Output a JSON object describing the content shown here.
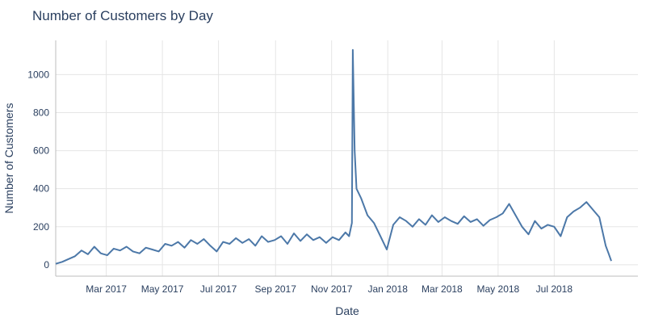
{
  "chart_data": {
    "type": "line",
    "title": "Number of Customers by Day",
    "xlabel": "Date",
    "ylabel": "Number of Customers",
    "xlim": [
      "2017-01-05",
      "2018-09-30"
    ],
    "ylim": [
      -60,
      1180
    ],
    "x_ticks": [
      {
        "date": "2017-03-01",
        "label": "Mar 2017"
      },
      {
        "date": "2017-05-01",
        "label": "May 2017"
      },
      {
        "date": "2017-07-01",
        "label": "Jul 2017"
      },
      {
        "date": "2017-09-01",
        "label": "Sep 2017"
      },
      {
        "date": "2017-11-01",
        "label": "Nov 2017"
      },
      {
        "date": "2018-01-01",
        "label": "Jan 2018"
      },
      {
        "date": "2018-03-01",
        "label": "Mar 2018"
      },
      {
        "date": "2018-05-01",
        "label": "May 2018"
      },
      {
        "date": "2018-07-01",
        "label": "Jul 2018"
      }
    ],
    "y_ticks": [
      0,
      200,
      400,
      600,
      800,
      1000
    ],
    "grid": true,
    "line_color": "#4c78a8",
    "series": [
      {
        "name": "",
        "points": [
          [
            "2017-01-05",
            5
          ],
          [
            "2017-01-12",
            15
          ],
          [
            "2017-01-19",
            30
          ],
          [
            "2017-01-26",
            45
          ],
          [
            "2017-02-02",
            75
          ],
          [
            "2017-02-09",
            55
          ],
          [
            "2017-02-16",
            95
          ],
          [
            "2017-02-23",
            60
          ],
          [
            "2017-03-02",
            50
          ],
          [
            "2017-03-09",
            85
          ],
          [
            "2017-03-16",
            75
          ],
          [
            "2017-03-23",
            95
          ],
          [
            "2017-03-30",
            70
          ],
          [
            "2017-04-06",
            60
          ],
          [
            "2017-04-13",
            90
          ],
          [
            "2017-04-20",
            80
          ],
          [
            "2017-04-27",
            70
          ],
          [
            "2017-05-04",
            110
          ],
          [
            "2017-05-11",
            100
          ],
          [
            "2017-05-18",
            120
          ],
          [
            "2017-05-25",
            90
          ],
          [
            "2017-06-01",
            130
          ],
          [
            "2017-06-08",
            110
          ],
          [
            "2017-06-15",
            135
          ],
          [
            "2017-06-22",
            100
          ],
          [
            "2017-06-29",
            70
          ],
          [
            "2017-07-06",
            120
          ],
          [
            "2017-07-13",
            110
          ],
          [
            "2017-07-20",
            140
          ],
          [
            "2017-07-27",
            115
          ],
          [
            "2017-08-03",
            135
          ],
          [
            "2017-08-10",
            100
          ],
          [
            "2017-08-17",
            150
          ],
          [
            "2017-08-24",
            120
          ],
          [
            "2017-08-31",
            130
          ],
          [
            "2017-09-07",
            150
          ],
          [
            "2017-09-14",
            110
          ],
          [
            "2017-09-21",
            165
          ],
          [
            "2017-09-28",
            125
          ],
          [
            "2017-10-05",
            160
          ],
          [
            "2017-10-12",
            130
          ],
          [
            "2017-10-19",
            145
          ],
          [
            "2017-10-26",
            115
          ],
          [
            "2017-11-02",
            145
          ],
          [
            "2017-11-09",
            130
          ],
          [
            "2017-11-16",
            170
          ],
          [
            "2017-11-20",
            150
          ],
          [
            "2017-11-23",
            220
          ],
          [
            "2017-11-24",
            1130
          ],
          [
            "2017-11-26",
            600
          ],
          [
            "2017-11-28",
            400
          ],
          [
            "2017-12-03",
            350
          ],
          [
            "2017-12-10",
            260
          ],
          [
            "2017-12-17",
            220
          ],
          [
            "2017-12-24",
            150
          ],
          [
            "2017-12-31",
            80
          ],
          [
            "2018-01-07",
            210
          ],
          [
            "2018-01-14",
            250
          ],
          [
            "2018-01-21",
            230
          ],
          [
            "2018-01-28",
            200
          ],
          [
            "2018-02-04",
            240
          ],
          [
            "2018-02-11",
            210
          ],
          [
            "2018-02-18",
            260
          ],
          [
            "2018-02-25",
            225
          ],
          [
            "2018-03-04",
            250
          ],
          [
            "2018-03-11",
            230
          ],
          [
            "2018-03-18",
            215
          ],
          [
            "2018-03-25",
            255
          ],
          [
            "2018-04-01",
            225
          ],
          [
            "2018-04-08",
            240
          ],
          [
            "2018-04-15",
            205
          ],
          [
            "2018-04-22",
            235
          ],
          [
            "2018-04-29",
            250
          ],
          [
            "2018-05-06",
            270
          ],
          [
            "2018-05-13",
            320
          ],
          [
            "2018-05-20",
            260
          ],
          [
            "2018-05-27",
            200
          ],
          [
            "2018-06-03",
            160
          ],
          [
            "2018-06-10",
            230
          ],
          [
            "2018-06-17",
            190
          ],
          [
            "2018-06-24",
            210
          ],
          [
            "2018-07-01",
            200
          ],
          [
            "2018-07-08",
            150
          ],
          [
            "2018-07-15",
            250
          ],
          [
            "2018-07-22",
            280
          ],
          [
            "2018-07-29",
            300
          ],
          [
            "2018-08-05",
            330
          ],
          [
            "2018-08-12",
            290
          ],
          [
            "2018-08-19",
            250
          ],
          [
            "2018-08-26",
            100
          ],
          [
            "2018-08-29",
            60
          ],
          [
            "2018-09-01",
            20
          ]
        ]
      }
    ]
  }
}
